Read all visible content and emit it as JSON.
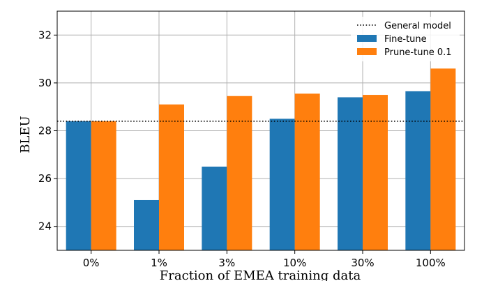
{
  "chart_data": {
    "type": "bar",
    "categories": [
      "0%",
      "1%",
      "3%",
      "10%",
      "30%",
      "100%"
    ],
    "series": [
      {
        "name": "Fine-tune",
        "color": "#1f77b4",
        "values": [
          28.4,
          25.1,
          26.5,
          28.5,
          29.4,
          29.65
        ]
      },
      {
        "name": "Prune-tune 0.1",
        "color": "#ff7f0e",
        "values": [
          28.4,
          29.1,
          29.45,
          29.55,
          29.5,
          30.6
        ]
      }
    ],
    "reference_line": {
      "name": "General model",
      "value": 28.4,
      "style": "dotted",
      "color": "#000000"
    },
    "xlabel": "Fraction of EMEA training data",
    "ylabel": "BLEU",
    "ylim": [
      23.0,
      33.0
    ],
    "yticks": [
      24,
      26,
      28,
      30,
      32
    ],
    "grid": true,
    "legend_position": "top-right"
  }
}
